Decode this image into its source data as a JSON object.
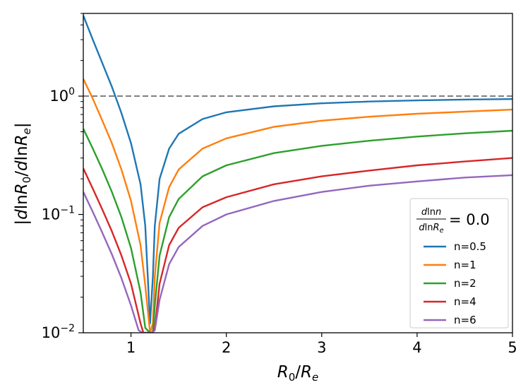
{
  "chart_data": {
    "type": "line",
    "xlabel": "R_0/R_e",
    "ylabel": "|d lnR_0 / d lnR_e|",
    "xlim": [
      0.5,
      5
    ],
    "ylim": [
      0.01,
      5
    ],
    "yscale": "log",
    "x_ticks": [
      1,
      2,
      3,
      4,
      5
    ],
    "y_ticks": [
      {
        "value": 1.0,
        "label": "10",
        "exp": "0"
      },
      {
        "value": 0.1,
        "label": "10",
        "exp": "−1"
      },
      {
        "value": 0.01,
        "label": "10",
        "exp": "−2"
      }
    ],
    "grid": false,
    "legend": {
      "placement": "bottom-right",
      "title_num": "dlnn",
      "title_den": "dlnR_e",
      "title_value": "= 0.0"
    },
    "reference_line": {
      "y": 1.0,
      "style": "dashed",
      "color": "#808080"
    },
    "series": [
      {
        "name": "n=0.5",
        "color": "#1f77b4",
        "x": [
          0.5,
          0.6,
          0.7,
          0.8,
          0.9,
          1.0,
          1.1,
          1.15,
          1.2,
          1.23,
          1.25,
          1.3,
          1.4,
          1.5,
          1.75,
          2.0,
          2.5,
          3.0,
          3.5,
          4.0,
          4.5,
          5.0
        ],
        "y": [
          4.8,
          3.0,
          1.9,
          1.2,
          0.72,
          0.4,
          0.18,
          0.08,
          0.012,
          0.03,
          0.08,
          0.2,
          0.36,
          0.48,
          0.64,
          0.73,
          0.82,
          0.87,
          0.9,
          0.92,
          0.935,
          0.945
        ]
      },
      {
        "name": "n=1",
        "color": "#ff7f0e",
        "x": [
          0.5,
          0.6,
          0.7,
          0.8,
          0.9,
          1.0,
          1.1,
          1.15,
          1.2,
          1.23,
          1.25,
          1.3,
          1.4,
          1.5,
          1.75,
          2.0,
          2.5,
          3.0,
          3.5,
          4.0,
          4.5,
          5.0
        ],
        "y": [
          1.4,
          0.95,
          0.62,
          0.4,
          0.24,
          0.13,
          0.055,
          0.025,
          0.01,
          0.012,
          0.03,
          0.085,
          0.17,
          0.24,
          0.36,
          0.44,
          0.55,
          0.62,
          0.67,
          0.71,
          0.74,
          0.77
        ]
      },
      {
        "name": "n=2",
        "color": "#2ca02c",
        "x": [
          0.5,
          0.6,
          0.7,
          0.8,
          0.9,
          1.0,
          1.1,
          1.15,
          1.2,
          1.23,
          1.25,
          1.3,
          1.4,
          1.5,
          1.75,
          2.0,
          2.5,
          3.0,
          3.5,
          4.0,
          4.5,
          5.0
        ],
        "y": [
          0.53,
          0.36,
          0.24,
          0.155,
          0.095,
          0.052,
          0.022,
          0.011,
          0.01,
          0.01,
          0.017,
          0.045,
          0.095,
          0.135,
          0.21,
          0.26,
          0.33,
          0.38,
          0.42,
          0.455,
          0.485,
          0.51
        ]
      },
      {
        "name": "n=4",
        "color": "#d62728",
        "x": [
          0.5,
          0.6,
          0.7,
          0.8,
          0.9,
          1.0,
          1.1,
          1.13,
          1.17,
          1.22,
          1.25,
          1.3,
          1.4,
          1.5,
          1.75,
          2.0,
          2.5,
          3.0,
          3.5,
          4.0,
          4.5,
          5.0
        ],
        "y": [
          0.245,
          0.165,
          0.11,
          0.072,
          0.045,
          0.026,
          0.012,
          0.01,
          0.01,
          0.01,
          0.011,
          0.026,
          0.055,
          0.077,
          0.115,
          0.14,
          0.18,
          0.21,
          0.235,
          0.26,
          0.28,
          0.3
        ]
      },
      {
        "name": "n=6",
        "color": "#9467bd",
        "x": [
          0.5,
          0.6,
          0.7,
          0.8,
          0.9,
          1.0,
          1.08,
          1.12,
          1.17,
          1.22,
          1.25,
          1.3,
          1.4,
          1.5,
          1.75,
          2.0,
          2.5,
          3.0,
          3.5,
          4.0,
          4.5,
          5.0
        ],
        "y": [
          0.155,
          0.105,
          0.07,
          0.046,
          0.029,
          0.017,
          0.0105,
          0.01,
          0.01,
          0.01,
          0.0105,
          0.019,
          0.038,
          0.053,
          0.08,
          0.1,
          0.13,
          0.155,
          0.175,
          0.19,
          0.205,
          0.215
        ]
      }
    ]
  }
}
